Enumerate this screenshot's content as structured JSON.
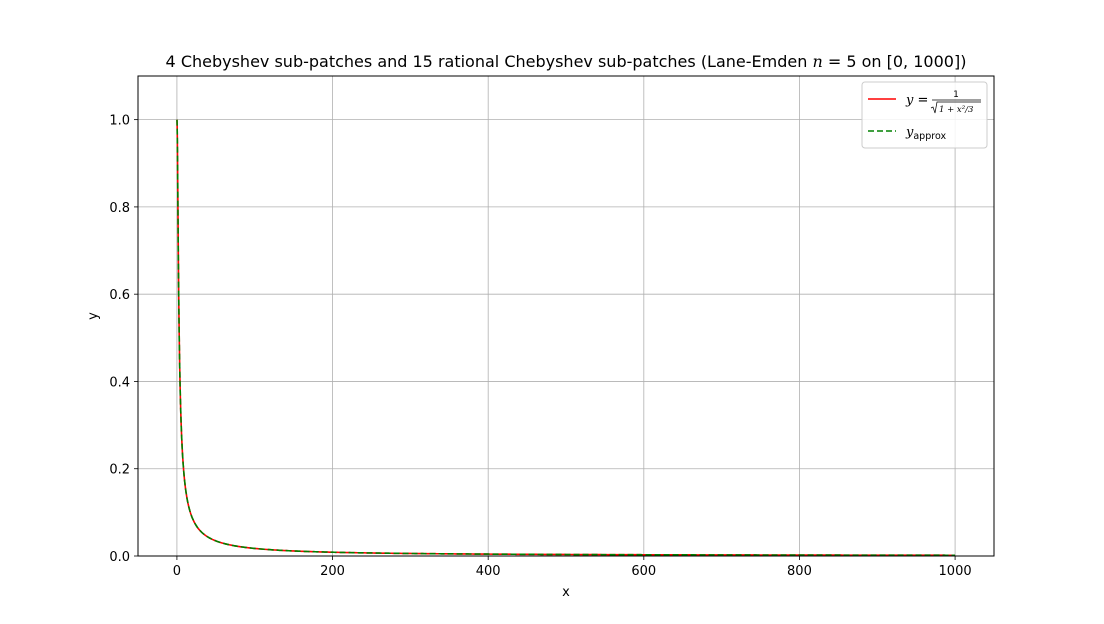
{
  "chart_data": {
    "type": "line",
    "title": {
      "prefix": "4 Chebyshev sub-patches and 15 rational Chebyshev sub-patches (Lane-Emden ",
      "n_symbol": "n",
      "equals": " = 5 on ",
      "range": "[0, 1000]",
      "suffix": ")"
    },
    "xlabel": "x",
    "ylabel": "y",
    "xlim": [
      -50,
      1050
    ],
    "ylim": [
      0,
      1.1
    ],
    "x_ticks": [
      0,
      200,
      400,
      600,
      800,
      1000
    ],
    "x_tick_labels": [
      "0",
      "200",
      "400",
      "600",
      "800",
      "1000"
    ],
    "y_ticks": [
      0.0,
      0.2,
      0.4,
      0.6,
      0.8,
      1.0
    ],
    "y_tick_labels": [
      "0.0",
      "0.2",
      "0.4",
      "0.6",
      "0.8",
      "1.0"
    ],
    "grid": true,
    "legend_position": "top-right",
    "x_domain": [
      0,
      1000
    ],
    "series": [
      {
        "name": "y = 1/√(1 + x²/3)",
        "legend": {
          "lhs": "y",
          "eq": " = ",
          "num": "1",
          "den": "1 + x²/3"
        },
        "color": "#ff0000",
        "style": "solid",
        "function": "1/sqrt(1+x^2/3)"
      },
      {
        "name": "y_approx",
        "legend": {
          "lhs": "y",
          "sub": "approx"
        },
        "color": "#008000",
        "style": "dashed",
        "function": "1/sqrt(1+x^2/3)"
      }
    ]
  }
}
